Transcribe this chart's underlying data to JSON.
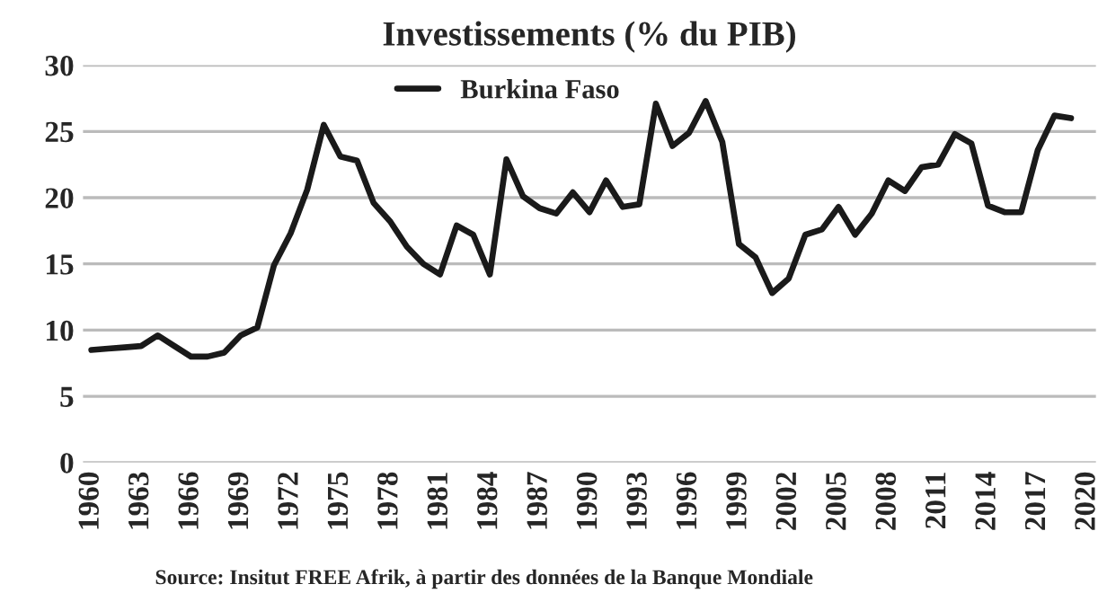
{
  "chart_data": {
    "type": "line",
    "title": "Investissements (% du PIB)",
    "x": [
      1960,
      1961,
      1962,
      1963,
      1964,
      1965,
      1966,
      1967,
      1968,
      1969,
      1970,
      1971,
      1972,
      1973,
      1974,
      1975,
      1976,
      1977,
      1978,
      1979,
      1980,
      1981,
      1982,
      1983,
      1984,
      1985,
      1986,
      1987,
      1988,
      1989,
      1990,
      1991,
      1992,
      1993,
      1994,
      1995,
      1996,
      1997,
      1998,
      1999,
      2000,
      2001,
      2002,
      2003,
      2004,
      2005,
      2006,
      2007,
      2008,
      2009,
      2010,
      2011,
      2012,
      2013,
      2014,
      2015,
      2016,
      2017,
      2018,
      2019
    ],
    "series": [
      {
        "name": "Burkina Faso",
        "color": "#1a1a1a",
        "values": [
          8.5,
          8.6,
          8.7,
          8.8,
          9.6,
          8.8,
          8.0,
          8.0,
          8.3,
          9.6,
          10.2,
          14.9,
          17.3,
          20.6,
          25.5,
          23.1,
          22.8,
          19.6,
          18.2,
          16.3,
          15.0,
          14.2,
          17.9,
          17.2,
          14.2,
          22.9,
          20.1,
          19.2,
          18.8,
          20.4,
          18.9,
          21.3,
          19.3,
          19.5,
          27.1,
          23.9,
          24.9,
          27.3,
          24.2,
          16.5,
          15.5,
          12.8,
          13.9,
          17.2,
          17.6,
          19.3,
          17.2,
          18.8,
          21.3,
          20.5,
          22.3,
          22.5,
          24.8,
          24.1,
          19.4,
          18.9,
          18.9,
          23.6,
          26.2,
          26.0
        ]
      }
    ],
    "xlim": [
      1959.5,
      2020.5
    ],
    "xticks": [
      1960,
      1963,
      1966,
      1969,
      1972,
      1975,
      1978,
      1981,
      1984,
      1987,
      1990,
      1993,
      1996,
      1999,
      2002,
      2005,
      2008,
      2011,
      2014,
      2017,
      2020
    ],
    "ylim": [
      0,
      30
    ],
    "yticks": [
      0,
      5,
      10,
      15,
      20,
      25,
      30
    ],
    "grid": "y",
    "legend": "top",
    "marker": "none",
    "line_style": "solid",
    "annotations": [
      "Source: Insitut FREE Afrik, à partir des données de la Banque Mondiale"
    ]
  }
}
